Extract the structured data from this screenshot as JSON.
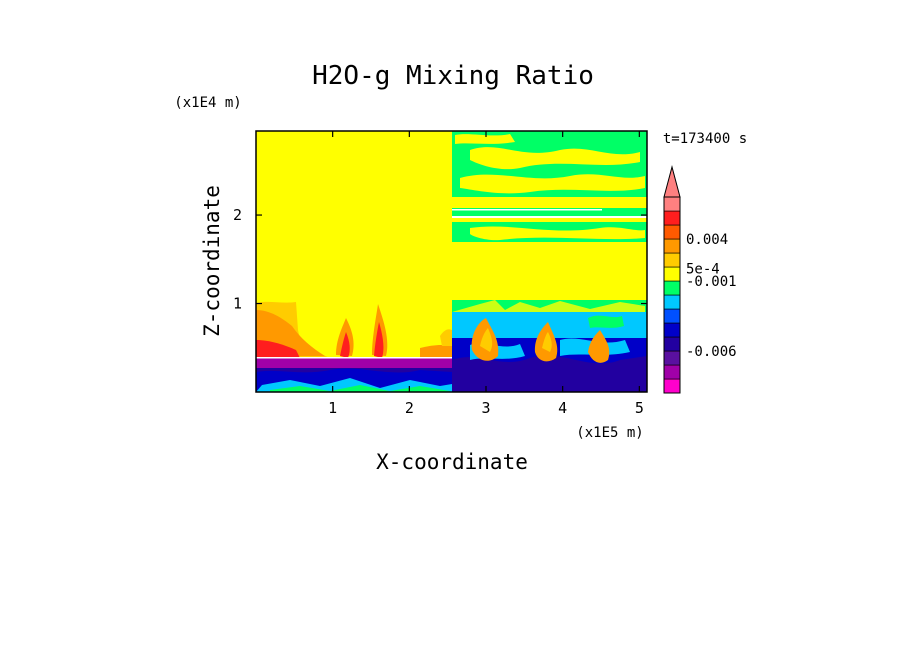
{
  "chart_data": {
    "type": "heatmap",
    "title": "H2O-g Mixing Ratio",
    "xlabel": "X-coordinate",
    "ylabel": "Z-coordinate",
    "x_scale_label": "(x1E5 m)",
    "y_scale_label": "(x1E4 m)",
    "time_label": "t=173400 s",
    "xlim": [
      0,
      5.1
    ],
    "ylim": [
      0,
      2.95
    ],
    "x_ticks": [
      {
        "value": 1,
        "label": "1"
      },
      {
        "value": 2,
        "label": "2"
      },
      {
        "value": 3,
        "label": "3"
      },
      {
        "value": 4,
        "label": "4"
      },
      {
        "value": 5,
        "label": "5"
      }
    ],
    "y_ticks": [
      {
        "value": 1,
        "label": "1"
      },
      {
        "value": 2,
        "label": "2"
      }
    ],
    "colorbar": {
      "levels": [
        {
          "color": "#ff00cc"
        },
        {
          "color": "#a000a8"
        },
        {
          "color": "#5a10a0"
        },
        {
          "color": "#2200a0"
        },
        {
          "color": "#0000c8"
        },
        {
          "color": "#0050ff"
        },
        {
          "color": "#00c8ff"
        },
        {
          "color": "#00ff66"
        },
        {
          "color": "#ffff00"
        },
        {
          "color": "#ffcc00"
        },
        {
          "color": "#ff9900"
        },
        {
          "color": "#ff5a00"
        },
        {
          "color": "#ff1e1e"
        },
        {
          "color": "#ff8080"
        }
      ],
      "labels": [
        {
          "text": "0.004",
          "level": 11.0
        },
        {
          "text": "5e-4",
          "level": 8.9
        },
        {
          "text": "-0.001",
          "level": 8.0
        },
        {
          "text": "-0.006",
          "level": 3.0
        }
      ]
    },
    "palette": {
      "background": "#ffff00",
      "green": "#00ff66",
      "cyan": "#00c8ff",
      "blue": "#0000c8",
      "navy": "#2200a0",
      "purple": "#a000a8",
      "orange": "#ff9900",
      "red": "#ff1e1e",
      "pink": "#ff8080"
    }
  }
}
